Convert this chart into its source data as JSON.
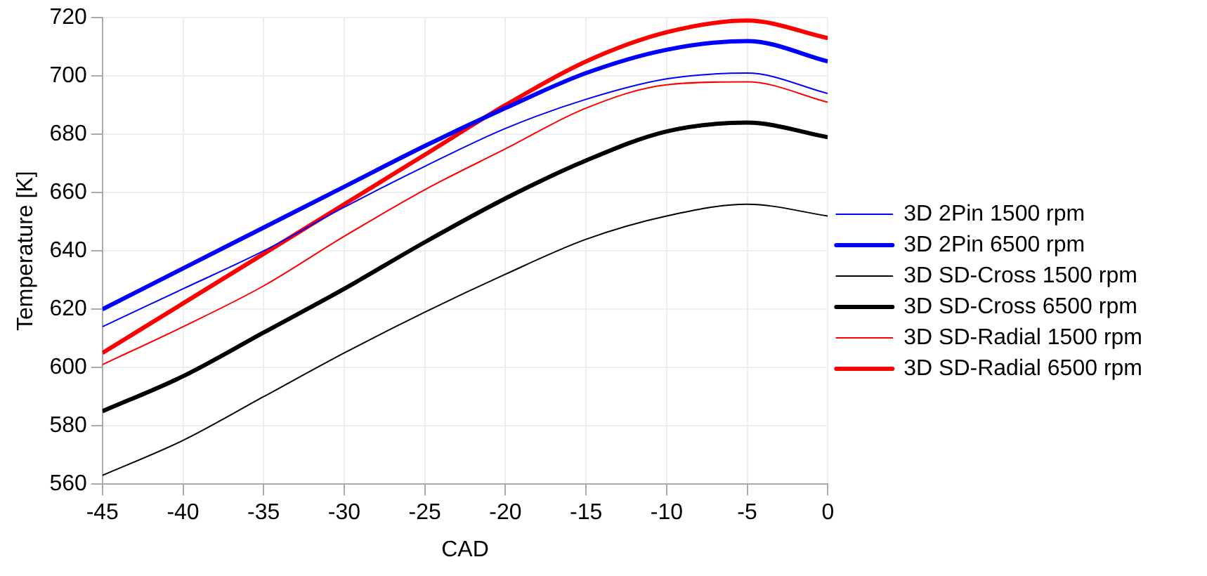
{
  "chart_data": {
    "type": "line",
    "xlabel": "CAD",
    "ylabel": "Temperature [K]",
    "x": [
      -45,
      -40,
      -35,
      -30,
      -25,
      -20,
      -15,
      -10,
      -5,
      0
    ],
    "series": [
      {
        "name": "3D 2Pin 1500 rpm",
        "color": "#0000ff",
        "values": [
          614,
          627,
          640,
          655,
          669,
          682,
          692,
          699,
          701,
          694
        ]
      },
      {
        "name": "3D 2Pin 6500 rpm",
        "color": "#0000ff",
        "values": [
          620,
          634,
          648,
          662,
          676,
          689,
          701,
          709,
          712,
          705
        ]
      },
      {
        "name": "3D SD-Cross 1500 rpm",
        "color": "#000000",
        "values": [
          563,
          575,
          590,
          605,
          619,
          632,
          644,
          652,
          656,
          652
        ]
      },
      {
        "name": "3D SD-Cross 6500 rpm",
        "color": "#000000",
        "values": [
          585,
          597,
          612,
          627,
          643,
          658,
          671,
          681,
          684,
          679
        ]
      },
      {
        "name": "3D SD-Radial 1500 rpm",
        "color": "#ff0000",
        "values": [
          601,
          614,
          628,
          645,
          661,
          675,
          689,
          697,
          698,
          691
        ]
      },
      {
        "name": "3D SD-Radial 6500 rpm",
        "color": "#ff0000",
        "values": [
          605,
          622,
          639,
          656,
          673,
          690,
          705,
          715,
          719,
          713
        ]
      }
    ],
    "xlim": [
      -45,
      0
    ],
    "xticks": [
      -45,
      -40,
      -35,
      -30,
      -25,
      -20,
      -15,
      -10,
      -5,
      0
    ],
    "ylim": [
      560,
      720
    ],
    "yticks": [
      560,
      580,
      600,
      620,
      640,
      660,
      680,
      700,
      720
    ],
    "grid": true,
    "legend": "right",
    "marker": "none",
    "line_style": "solid"
  }
}
